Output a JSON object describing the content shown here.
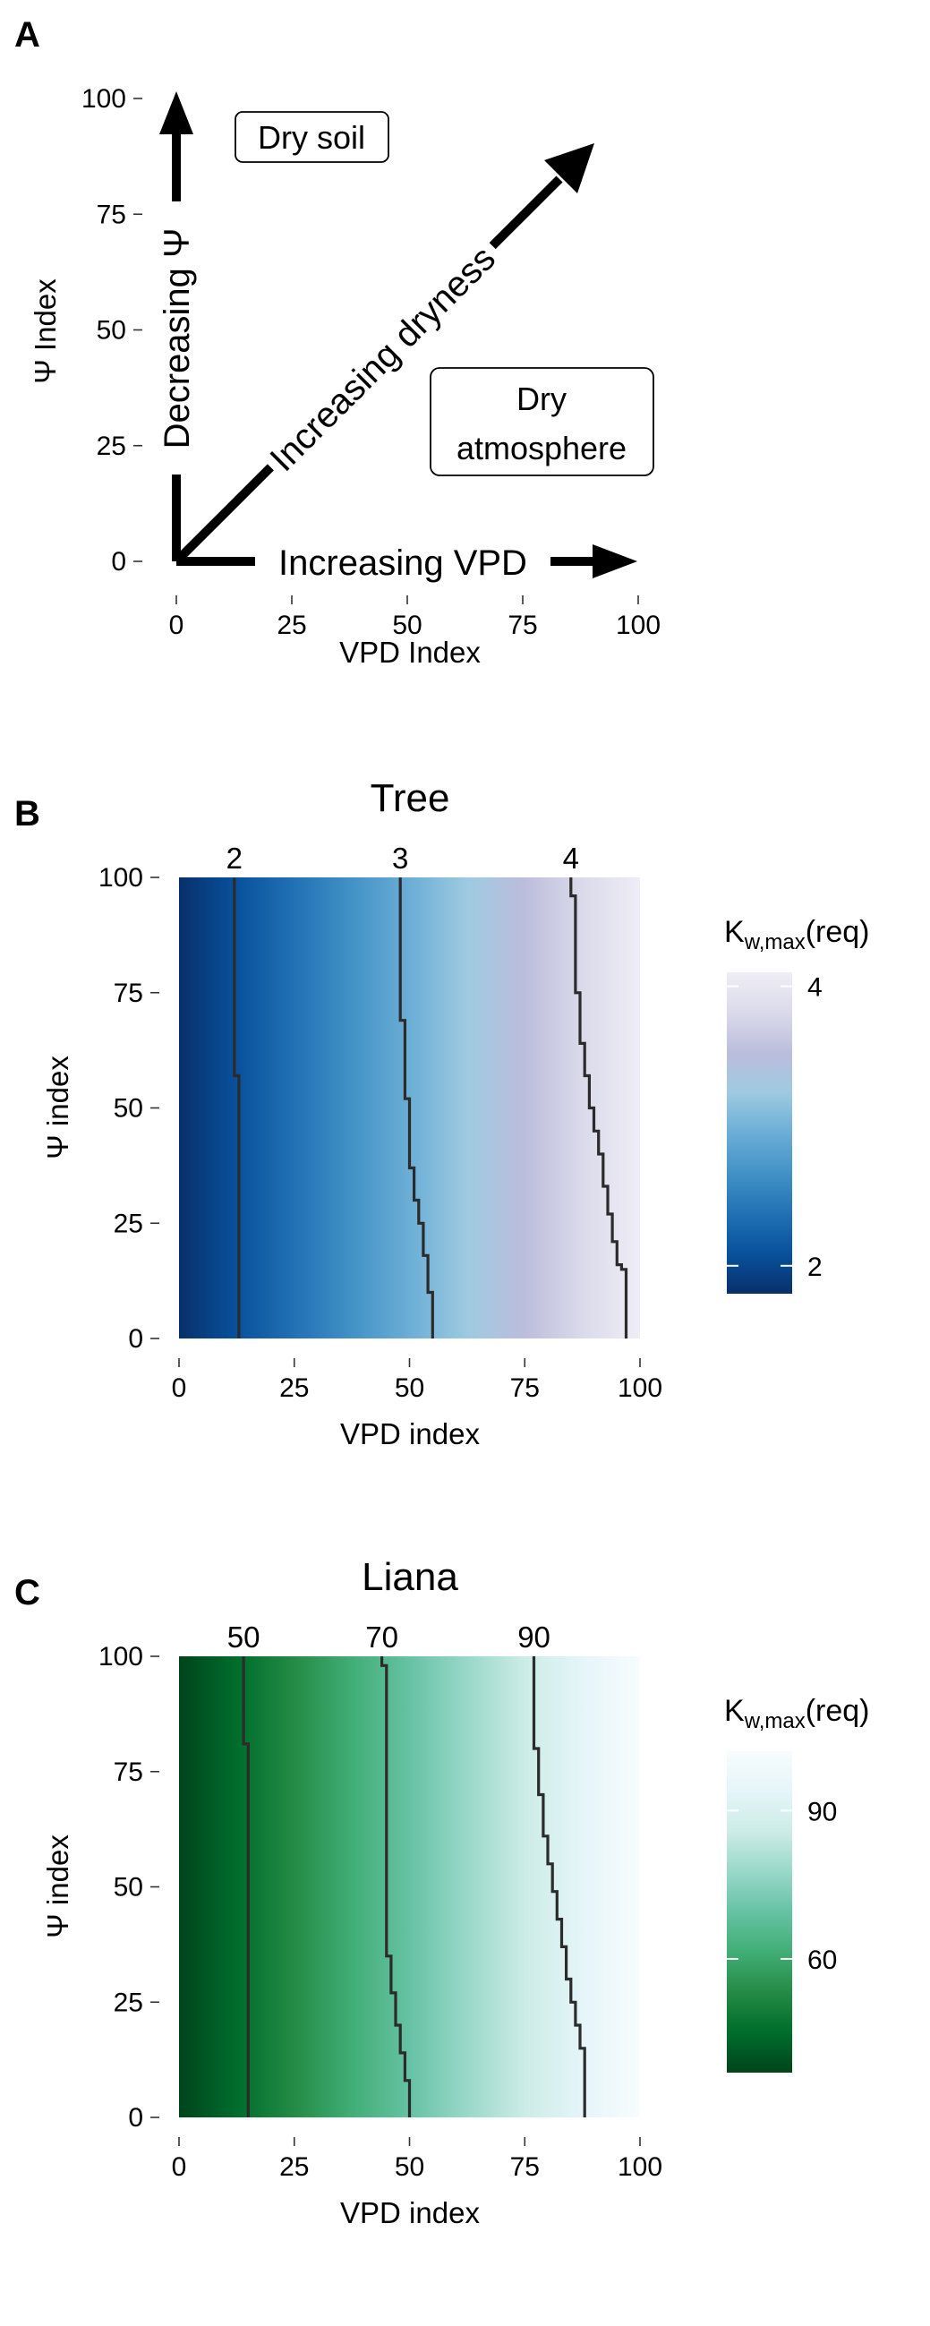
{
  "panels": {
    "A": {
      "letter": "A"
    },
    "B": {
      "letter": "B"
    },
    "C": {
      "letter": "C"
    }
  },
  "chart_data": [
    {
      "type": "diagram",
      "panel": "A",
      "xlabel": "VPD Index",
      "ylabel": "Ψ Index",
      "xlim": [
        0,
        100
      ],
      "ylim": [
        0,
        100
      ],
      "xticks": [
        0,
        25,
        50,
        75,
        100
      ],
      "yticks": [
        0,
        25,
        50,
        75,
        100
      ],
      "arrow_labels": {
        "x": "Increasing VPD",
        "y": "Decreasing Ψ",
        "diagonal": "Increasing dryness"
      },
      "boxes": {
        "dry_soil": "Dry soil",
        "dry_atm_line1": "Dry",
        "dry_atm_line2": "atmosphere"
      }
    },
    {
      "type": "heatmap",
      "panel": "B",
      "title": "Tree",
      "xlabel": "VPD index",
      "ylabel": "Ψ index",
      "xlim": [
        0,
        100
      ],
      "ylim": [
        0,
        100
      ],
      "xticks": [
        0,
        25,
        50,
        75,
        100
      ],
      "yticks": [
        0,
        25,
        50,
        75,
        100
      ],
      "legend": {
        "title_main": "K",
        "title_sub": "w,max",
        "title_suffix": "(req)",
        "ticks": [
          2,
          4
        ],
        "range": [
          1.8,
          4.1
        ],
        "position": "right"
      },
      "colors": [
        "#08306b",
        "#08519c",
        "#2171b5",
        "#4292c6",
        "#6baed6",
        "#9ecae1",
        "#bcbddc",
        "#dadaeb",
        "#efedf5"
      ],
      "contours": [
        {
          "level": "2",
          "points": [
            [
              12,
              100
            ],
            [
              12,
              57
            ],
            [
              13,
              57
            ],
            [
              13,
              0
            ]
          ]
        },
        {
          "level": "3",
          "points": [
            [
              48,
              100
            ],
            [
              48,
              69
            ],
            [
              49,
              69
            ],
            [
              49,
              52
            ],
            [
              50,
              52
            ],
            [
              50,
              37
            ],
            [
              51,
              37
            ],
            [
              51,
              30
            ],
            [
              52,
              30
            ],
            [
              52,
              25
            ],
            [
              53,
              25
            ],
            [
              53,
              18
            ],
            [
              54,
              18
            ],
            [
              54,
              10
            ],
            [
              55,
              10
            ],
            [
              55,
              3
            ],
            [
              55,
              0
            ]
          ]
        },
        {
          "level": "4",
          "points": [
            [
              85,
              100
            ],
            [
              85,
              96
            ],
            [
              86,
              96
            ],
            [
              86,
              75
            ],
            [
              87,
              75
            ],
            [
              87,
              64
            ],
            [
              88,
              64
            ],
            [
              88,
              57
            ],
            [
              89,
              57
            ],
            [
              89,
              50
            ],
            [
              90,
              50
            ],
            [
              90,
              45
            ],
            [
              91,
              45
            ],
            [
              91,
              40
            ],
            [
              92,
              40
            ],
            [
              92,
              33
            ],
            [
              93,
              33
            ],
            [
              93,
              27
            ],
            [
              94,
              27
            ],
            [
              94,
              21
            ],
            [
              95,
              21
            ],
            [
              95,
              16
            ],
            [
              96,
              16
            ],
            [
              96,
              15
            ],
            [
              97,
              15
            ],
            [
              97,
              0
            ]
          ]
        }
      ]
    },
    {
      "type": "heatmap",
      "panel": "C",
      "title": "Liana",
      "xlabel": "VPD index",
      "ylabel": "Ψ index",
      "xlim": [
        0,
        100
      ],
      "ylim": [
        0,
        100
      ],
      "xticks": [
        0,
        25,
        50,
        75,
        100
      ],
      "yticks": [
        0,
        25,
        50,
        75,
        100
      ],
      "legend": {
        "title_main": "K",
        "title_sub": "w,max",
        "title_suffix": "(req)",
        "ticks": [
          60,
          90
        ],
        "range": [
          37,
          102
        ],
        "position": "right"
      },
      "colors": [
        "#00441b",
        "#006d2c",
        "#238b45",
        "#41ae76",
        "#66c2a4",
        "#99d8c9",
        "#ccece6",
        "#e5f5f9",
        "#f7fcfd"
      ],
      "contours": [
        {
          "level": "50",
          "points": [
            [
              14,
              100
            ],
            [
              14,
              81
            ],
            [
              15,
              81
            ],
            [
              15,
              0
            ]
          ]
        },
        {
          "level": "70",
          "points": [
            [
              44,
              100
            ],
            [
              44,
              98
            ],
            [
              45,
              98
            ],
            [
              45,
              35
            ],
            [
              46,
              35
            ],
            [
              46,
              27
            ],
            [
              47,
              27
            ],
            [
              47,
              20
            ],
            [
              48,
              20
            ],
            [
              48,
              14
            ],
            [
              49,
              14
            ],
            [
              49,
              8
            ],
            [
              50,
              8
            ],
            [
              50,
              0
            ]
          ]
        },
        {
          "level": "90",
          "points": [
            [
              77,
              100
            ],
            [
              77,
              80
            ],
            [
              78,
              80
            ],
            [
              78,
              70
            ],
            [
              79,
              70
            ],
            [
              79,
              61
            ],
            [
              80,
              61
            ],
            [
              80,
              55
            ],
            [
              81,
              55
            ],
            [
              81,
              49
            ],
            [
              82,
              49
            ],
            [
              82,
              43
            ],
            [
              83,
              43
            ],
            [
              83,
              37
            ],
            [
              84,
              37
            ],
            [
              84,
              30
            ],
            [
              85,
              30
            ],
            [
              85,
              25
            ],
            [
              86,
              25
            ],
            [
              86,
              20
            ],
            [
              87,
              20
            ],
            [
              87,
              15
            ],
            [
              88,
              15
            ],
            [
              88,
              0
            ]
          ]
        }
      ]
    }
  ]
}
